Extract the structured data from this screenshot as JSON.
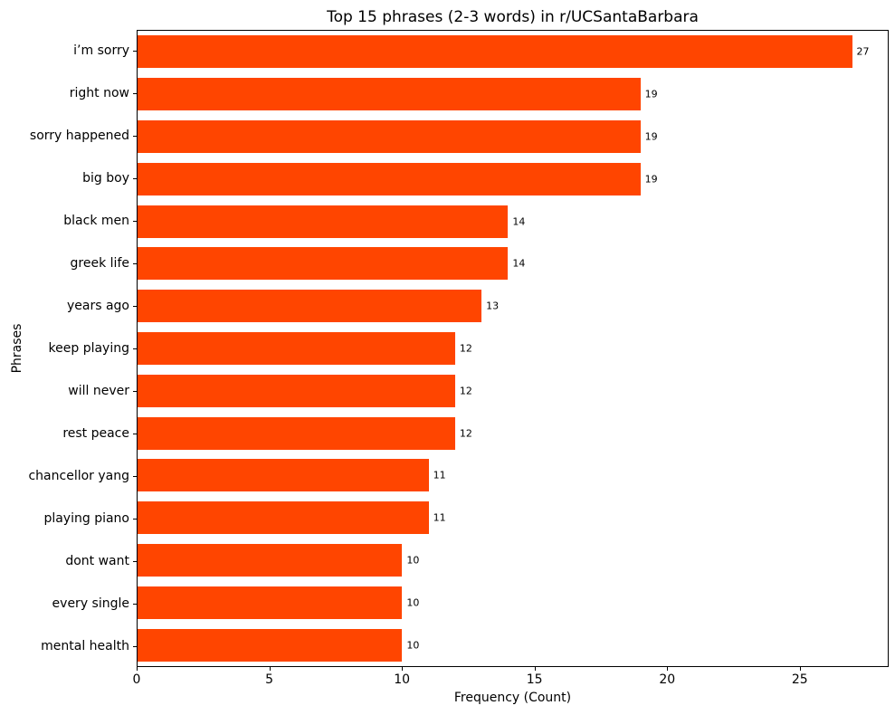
{
  "chart_data": {
    "type": "bar",
    "orientation": "horizontal",
    "title": "Top 15 phrases (2-3 words) in r/UCSantaBarbara",
    "xlabel": "Frequency (Count)",
    "ylabel": "Phrases",
    "categories": [
      "i’m sorry",
      "right now",
      "sorry happened",
      "big boy",
      "black men",
      "greek life",
      "years ago",
      "keep playing",
      "will never",
      "rest peace",
      "chancellor yang",
      "playing piano",
      "dont want",
      "every single",
      "mental health"
    ],
    "values": [
      27,
      19,
      19,
      19,
      14,
      14,
      13,
      12,
      12,
      12,
      11,
      11,
      10,
      10,
      10
    ],
    "value_labels": [
      "27",
      "19",
      "19",
      "19",
      "14",
      "14",
      "13",
      "12",
      "12",
      "12",
      "11",
      "11",
      "10",
      "10",
      "10"
    ],
    "bar_color": "#FF4500",
    "text_color": "#000000",
    "xlim": [
      0,
      28.35
    ],
    "xticks": [
      0,
      5,
      10,
      15,
      20,
      25
    ],
    "grid": false,
    "legend": null
  }
}
